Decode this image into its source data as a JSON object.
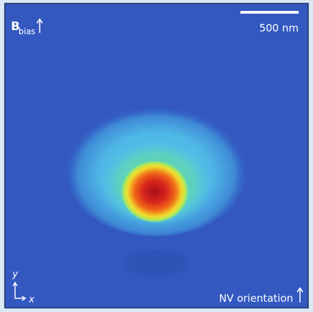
{
  "labels": {
    "field": "B",
    "field_subscript": "bias",
    "scale_bar": "500 nm",
    "axis_y": "y",
    "axis_x": "x",
    "orientation": "NV orientation"
  }
}
